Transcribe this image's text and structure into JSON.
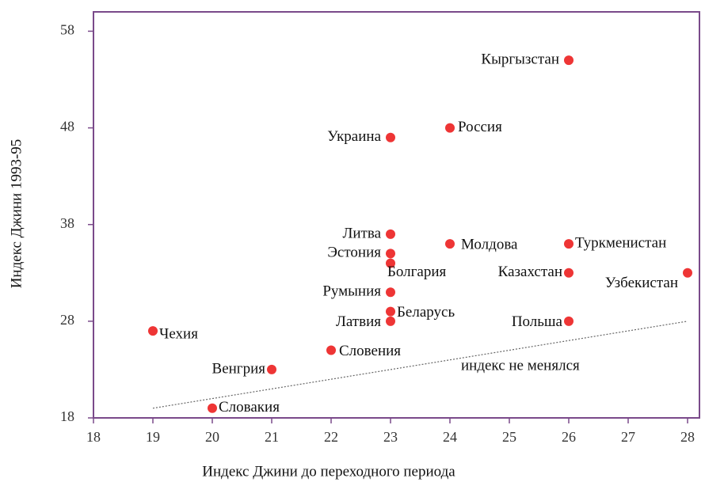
{
  "chart_data": {
    "type": "scatter",
    "x_label": "Индекс Джини до переходного периода",
    "y_label": "Индекс Джини 1993-95",
    "labels": [
      "Кыргызстан",
      "Россия",
      "Украина",
      "Литва",
      "Эстония",
      "Болгария",
      "Румыния",
      "Беларусь",
      "Латвия",
      "Молдова",
      "Туркменистан",
      "Казахстан",
      "Узбекистан",
      "Польша",
      "Чехия",
      "Словения",
      "Венгрия",
      "Словакия"
    ],
    "x": [
      26,
      24,
      23,
      23,
      23,
      23,
      23,
      23,
      23,
      24,
      26,
      26,
      28,
      26,
      19,
      22,
      21,
      20
    ],
    "y": [
      55,
      48,
      47,
      37,
      35,
      34,
      31,
      29,
      28,
      36,
      36,
      33,
      33,
      28,
      27,
      25,
      23,
      19
    ],
    "color": "#ee3535",
    "reference_line": {
      "x": [
        19,
        28
      ],
      "y": [
        19,
        28
      ],
      "label": "индекс не менялся"
    },
    "xlim": [
      18,
      28.2
    ],
    "ylim": [
      18,
      60
    ],
    "xticks": [
      18,
      19,
      20,
      21,
      22,
      23,
      24,
      25,
      26,
      27,
      28
    ],
    "yticks": [
      18,
      28,
      38,
      48,
      58
    ]
  }
}
